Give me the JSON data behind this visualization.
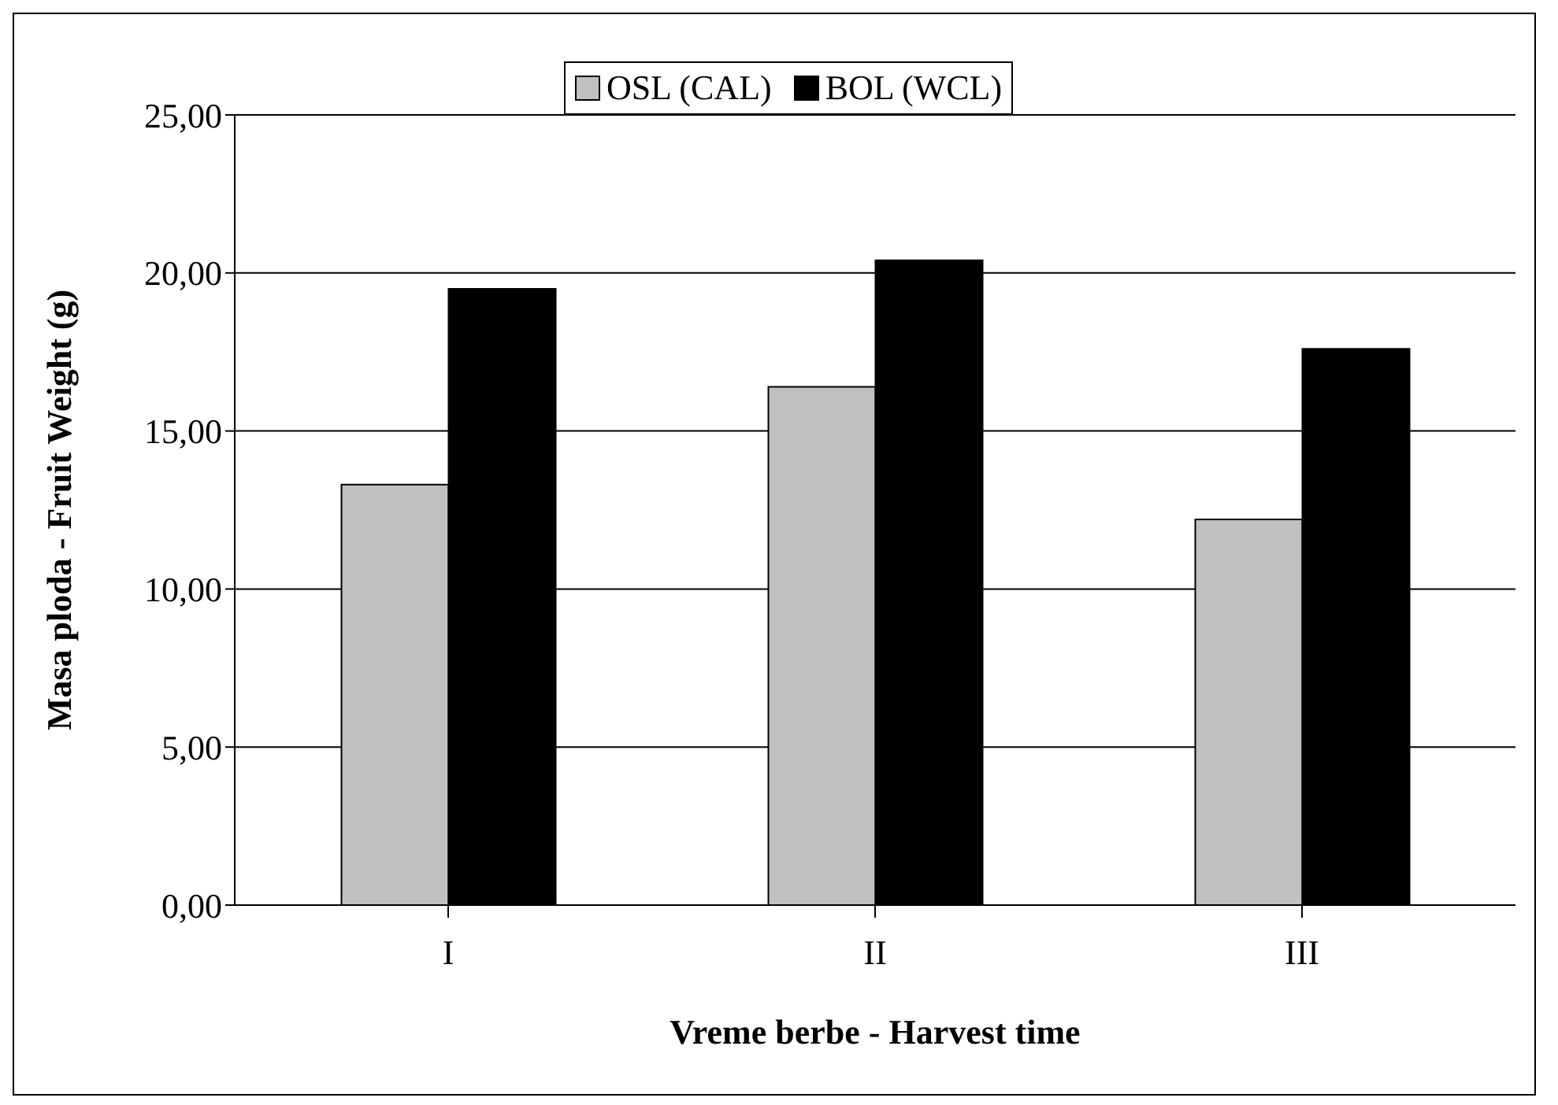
{
  "chart_data": {
    "type": "bar",
    "xlabel": "Vreme berbe - Harvest time",
    "ylabel": "Masa ploda - Fruit Weight  (g)",
    "categories": [
      "I",
      "II",
      "III"
    ],
    "series": [
      {
        "name": "OSL (CAL)",
        "color": "#c0c0c0",
        "values": [
          13.3,
          16.4,
          12.2
        ]
      },
      {
        "name": "BOL (WCL)",
        "color": "#000000",
        "values": [
          19.5,
          20.4,
          17.6
        ]
      }
    ],
    "ylim": [
      0,
      25
    ],
    "yticks": [
      {
        "value": 0,
        "label": "0,00"
      },
      {
        "value": 5,
        "label": "5,00"
      },
      {
        "value": 10,
        "label": "10,00"
      },
      {
        "value": 15,
        "label": "15,00"
      },
      {
        "value": 20,
        "label": "20,00"
      },
      {
        "value": 25,
        "label": "25,00"
      }
    ],
    "grid": "y",
    "legend": "top"
  }
}
